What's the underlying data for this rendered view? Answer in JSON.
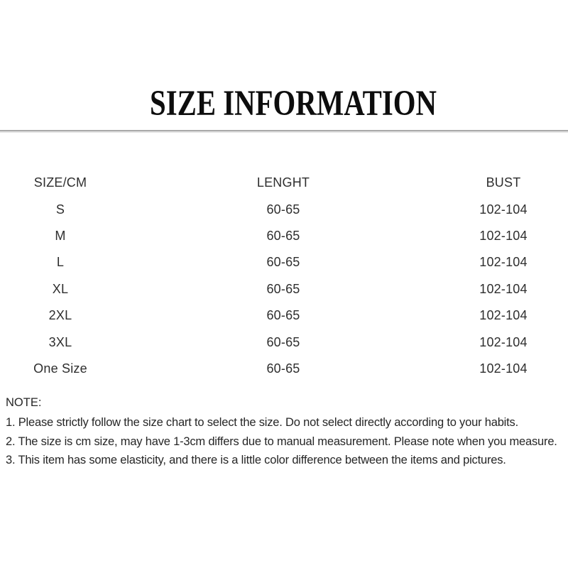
{
  "title": "SIZE INFORMATION",
  "table": {
    "headers": {
      "size": "SIZE/CM",
      "length": "LENGHT",
      "bust": "BUST"
    },
    "rows": [
      {
        "size": "S",
        "length": "60-65",
        "bust": "102-104"
      },
      {
        "size": "M",
        "length": "60-65",
        "bust": "102-104"
      },
      {
        "size": "L",
        "length": "60-65",
        "bust": "102-104"
      },
      {
        "size": "XL",
        "length": "60-65",
        "bust": "102-104"
      },
      {
        "size": "2XL",
        "length": "60-65",
        "bust": "102-104"
      },
      {
        "size": "3XL",
        "length": "60-65",
        "bust": "102-104"
      },
      {
        "size": "One Size",
        "length": "60-65",
        "bust": "102-104"
      }
    ]
  },
  "notes": {
    "title": "NOTE:",
    "items": [
      "1. Please strictly follow the size chart to select the size. Do not select directly according to your habits.",
      "2. The size is cm size, may have 1-3cm differs due to manual measurement. Please note when you measure.",
      "3. This item has some elasticity, and there is a little color difference between the items and pictures."
    ]
  }
}
